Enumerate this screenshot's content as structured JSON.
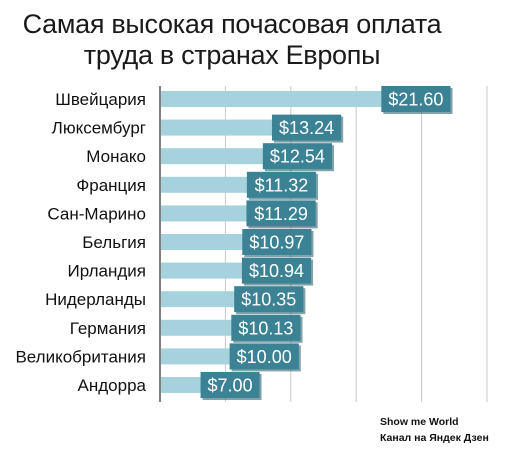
{
  "chart_data": {
    "type": "bar",
    "orientation": "horizontal",
    "title_lines": [
      "Самая высокая почасовая оплата",
      "труда в странах Европы"
    ],
    "categories": [
      "Швейцария",
      "Люксембург",
      "Монако",
      "Франция",
      "Сан-Марино",
      "Бельгия",
      "Ирландия",
      "Нидерланды",
      "Германия",
      "Великобритания",
      "Андорра"
    ],
    "values": [
      21.6,
      13.24,
      12.54,
      11.32,
      11.29,
      10.97,
      10.94,
      10.35,
      10.13,
      10.0,
      7.0
    ],
    "value_labels": [
      "$21.60",
      "$13.24",
      "$12.54",
      "$11.32",
      "$11.29",
      "$10.97",
      "$10.94",
      "$10.35",
      "$10.13",
      "$10.00",
      "$7.00"
    ],
    "xlim": [
      0,
      25
    ],
    "grid": true,
    "colors": {
      "bar": "#a6d2dd",
      "value_box": "#3a8294",
      "value_box_shadow": "#1f5563",
      "grid": "#c8c8c8",
      "axis": "#000000"
    }
  },
  "credit": {
    "line1": "Show me World",
    "line2": "Канал на Яндек Дзен"
  }
}
